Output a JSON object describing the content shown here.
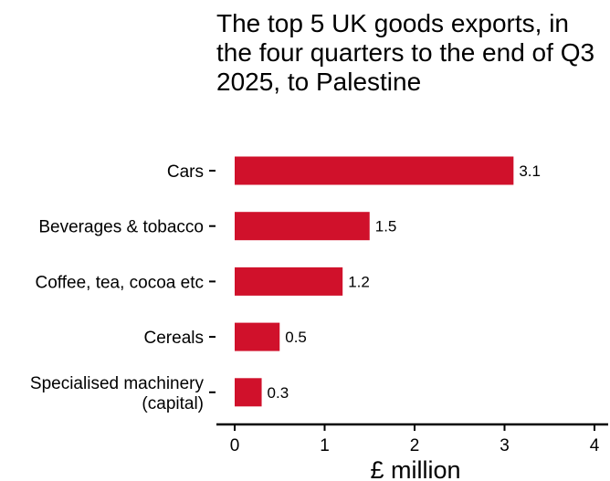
{
  "chart_data": {
    "type": "bar",
    "orientation": "horizontal",
    "title": "The top 5 UK goods exports, in the four quarters to the end of Q3 2025, to Palestine",
    "categories": [
      "Cars",
      "Beverages & tobacco",
      "Coffee, tea, cocoa etc",
      "Cereals",
      "Specialised machinery (capital)"
    ],
    "values": [
      3.1,
      1.5,
      1.2,
      0.5,
      0.3
    ],
    "value_labels": [
      "3.1",
      "1.5",
      "1.2",
      "0.5",
      "0.3"
    ],
    "xlabel": "£ million",
    "ylabel": "",
    "xlim": [
      0,
      4
    ],
    "xticks": [
      "0",
      "1",
      "2",
      "3",
      "4"
    ],
    "grid": false,
    "bar_color": "#d0112b"
  }
}
